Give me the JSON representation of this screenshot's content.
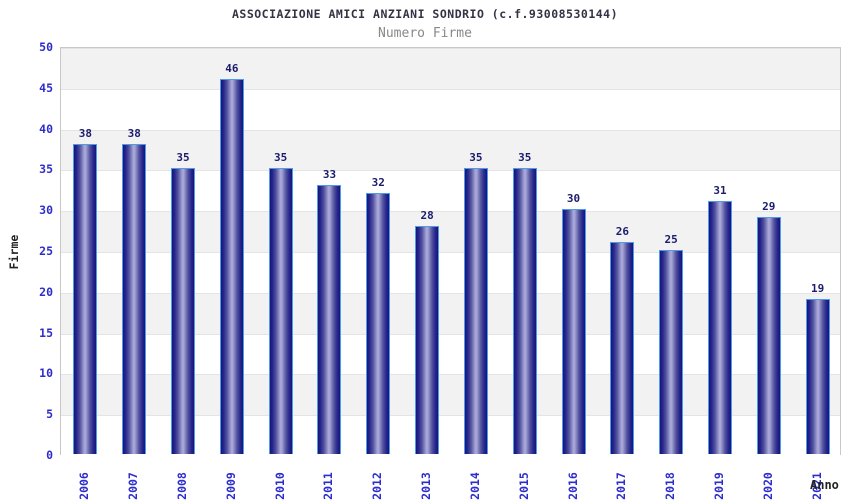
{
  "header": {
    "title": "ASSOCIAZIONE AMICI ANZIANI SONDRIO (c.f.93008530144)",
    "subtitle": "Numero Firme"
  },
  "chart_data": {
    "type": "bar",
    "title": "ASSOCIAZIONE AMICI ANZIANI SONDRIO (c.f.93008530144)",
    "subtitle": "Numero Firme",
    "xlabel": "Anno",
    "ylabel": "Firme",
    "categories": [
      "2006",
      "2007",
      "2008",
      "2009",
      "2010",
      "2011",
      "2012",
      "2013",
      "2014",
      "2015",
      "2016",
      "2017",
      "2018",
      "2019",
      "2020",
      "2021"
    ],
    "values": [
      38,
      38,
      35,
      46,
      35,
      33,
      32,
      28,
      35,
      35,
      30,
      26,
      25,
      31,
      29,
      19
    ],
    "ylim": [
      0,
      50
    ],
    "ytick_step": 5,
    "grid": "alternating-horizontal-bands",
    "legend": "none"
  },
  "colors": {
    "bar_dark": "#15157a",
    "bar_light": "#a6a6d8",
    "bar_border": "#4f9be8",
    "tick_label": "#2d2dcc",
    "value_label": "#1c1c6e",
    "title": "#333344",
    "subtitle": "#888888",
    "band_gray": "#f2f2f2",
    "band_white": "#ffffff",
    "plot_border": "#c8c8c8",
    "axis_label": "#222222"
  }
}
